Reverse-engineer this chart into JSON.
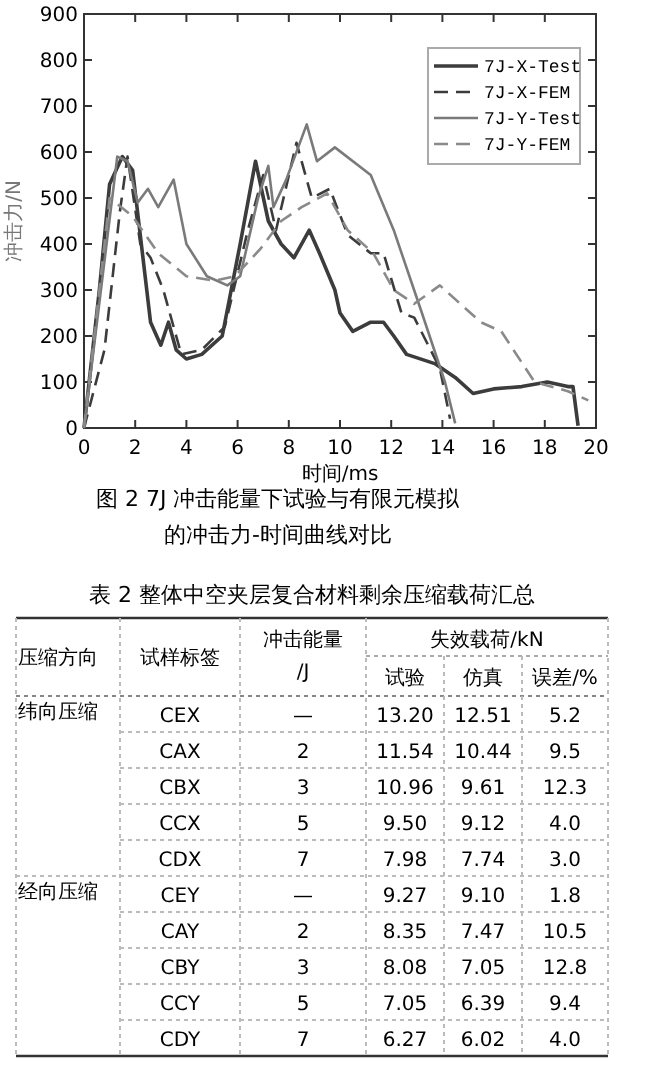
{
  "chart_data": [
    {
      "type": "line",
      "title": "图 2   7J 冲击能量下试验与有限元模拟的冲击力-时间曲线对比",
      "xlabel": "时间/ms",
      "ylabel": "冲击力/N",
      "xlim": [
        0,
        20
      ],
      "xticks": [
        0,
        2,
        4,
        6,
        8,
        10,
        12,
        14,
        16,
        18,
        20
      ],
      "ylim": [
        0,
        900
      ],
      "yticks": [
        0,
        100,
        200,
        300,
        400,
        500,
        600,
        700,
        800,
        900
      ],
      "legend": "top right",
      "grid": false,
      "marker": "none",
      "series": [
        {
          "name": "7J-X-Test",
          "color": "#3c3c3c",
          "line_style": "solid",
          "x": [
            0,
            0.6,
            1.0,
            1.5,
            1.9,
            2.6,
            3.0,
            3.3,
            3.6,
            4.0,
            4.6,
            5.4,
            6.1,
            6.7,
            7.2,
            7.7,
            8.2,
            8.6,
            8.8,
            9.2,
            9.8,
            10.0,
            10.5,
            11.2,
            11.7,
            12.1,
            12.6,
            13.7,
            14.5,
            15.2,
            16.0,
            17.1,
            18.1,
            18.9,
            19.1,
            19.3
          ],
          "values": [
            0,
            300,
            530,
            590,
            560,
            230,
            180,
            230,
            170,
            150,
            160,
            200,
            400,
            580,
            450,
            400,
            370,
            410,
            430,
            380,
            300,
            250,
            210,
            230,
            230,
            200,
            160,
            140,
            110,
            75,
            85,
            90,
            100,
            90,
            90,
            5
          ]
        },
        {
          "name": "7J-X-FEM",
          "color": "#3c3c3c",
          "line_style": "dashed",
          "x": [
            0,
            0.8,
            1.4,
            1.7,
            2.2,
            2.6,
            3.1,
            3.8,
            4.6,
            5.5,
            6.4,
            7.0,
            7.5,
            8.3,
            8.9,
            9.6,
            10.3,
            11.2,
            11.7,
            12.4,
            12.9,
            13.9,
            14.3
          ],
          "values": [
            0,
            170,
            470,
            590,
            400,
            370,
            300,
            160,
            170,
            220,
            430,
            550,
            430,
            620,
            500,
            520,
            420,
            380,
            380,
            250,
            240,
            130,
            20
          ]
        },
        {
          "name": "7J-Y-Test",
          "color": "#7a7a7a",
          "line_style": "solid",
          "x": [
            0,
            1.3,
            1.7,
            2.1,
            2.5,
            2.9,
            3.5,
            4.0,
            4.8,
            5.6,
            6.1,
            6.8,
            7.2,
            7.4,
            7.9,
            8.7,
            9.1,
            9.8,
            11.2,
            12.1,
            13.2,
            14.1,
            14.5
          ],
          "values": [
            0,
            590,
            580,
            490,
            520,
            480,
            540,
            400,
            330,
            310,
            330,
            500,
            570,
            480,
            540,
            660,
            580,
            610,
            550,
            430,
            250,
            100,
            10
          ]
        },
        {
          "name": "7J-Y-FEM",
          "color": "#8a8a8a",
          "line_style": "dashed",
          "x": [
            0,
            1.0,
            1.9,
            2.9,
            4.0,
            5.1,
            5.9,
            6.9,
            7.7,
            8.5,
            9.5,
            10.3,
            11.3,
            12.1,
            12.9,
            13.9,
            15.5,
            16.3,
            17.6,
            18.9,
            19.7
          ],
          "values": [
            0,
            500,
            460,
            380,
            330,
            320,
            330,
            390,
            450,
            480,
            510,
            430,
            380,
            300,
            270,
            310,
            230,
            210,
            100,
            80,
            60
          ]
        }
      ]
    },
    {
      "type": "other",
      "title": "表 2  整体中空夹层复合材料剩余压缩载荷汇总",
      "annotations": [
        "失效载荷/kN"
      ],
      "categories": [
        "压缩方向",
        "试样标签",
        "冲击能量/J",
        "试验",
        "仿真",
        "误差/%"
      ],
      "cell_labels": [
        [
          "纬向压缩",
          "CEX",
          "—",
          "13.20",
          "12.51",
          "5.2"
        ],
        [
          null,
          "CAX",
          "2",
          "11.54",
          "10.44",
          "9.5"
        ],
        [
          null,
          "CBX",
          "3",
          "10.96",
          "9.61",
          "12.3"
        ],
        [
          null,
          "CCX",
          "5",
          "9.50",
          "9.12",
          "4.0"
        ],
        [
          null,
          "CDX",
          "7",
          "7.98",
          "7.74",
          "3.0"
        ],
        [
          "经向压缩",
          "CEY",
          "—",
          "9.27",
          "9.10",
          "1.8"
        ],
        [
          null,
          "CAY",
          "2",
          "8.35",
          "7.47",
          "10.5"
        ],
        [
          null,
          "CBY",
          "3",
          "8.08",
          "7.05",
          "12.8"
        ],
        [
          null,
          "CCY",
          "5",
          "7.05",
          "6.39",
          "9.4"
        ],
        [
          null,
          "CDY",
          "7",
          "6.27",
          "6.02",
          "4.0"
        ]
      ]
    }
  ]
}
